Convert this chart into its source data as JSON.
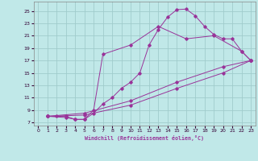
{
  "xlabel": "Windchill (Refroidissement éolien,°C)",
  "bg_color": "#c0e8e8",
  "grid_color": "#a0cccc",
  "line_color": "#993399",
  "xlim": [
    -0.5,
    23.5
  ],
  "ylim": [
    6.5,
    26.5
  ],
  "xticks": [
    0,
    1,
    2,
    3,
    4,
    5,
    6,
    7,
    8,
    9,
    10,
    11,
    12,
    13,
    14,
    15,
    16,
    17,
    18,
    19,
    20,
    21,
    22,
    23
  ],
  "yticks": [
    7,
    9,
    11,
    13,
    15,
    17,
    19,
    21,
    23,
    25
  ],
  "curves": [
    [
      [
        1,
        8
      ],
      [
        2,
        8
      ],
      [
        3,
        8
      ],
      [
        4,
        7.5
      ],
      [
        5,
        7.5
      ],
      [
        6,
        8.5
      ],
      [
        7,
        10
      ],
      [
        8,
        11
      ],
      [
        9,
        12.5
      ],
      [
        10,
        13.5
      ],
      [
        11,
        15
      ],
      [
        12,
        19.5
      ],
      [
        13,
        22
      ],
      [
        14,
        24
      ],
      [
        15,
        25.2
      ],
      [
        16,
        25.3
      ],
      [
        17,
        24.2
      ],
      [
        18,
        22.5
      ],
      [
        19,
        21.2
      ],
      [
        20,
        20.5
      ],
      [
        21,
        20.5
      ],
      [
        22,
        18.5
      ],
      [
        23,
        17
      ]
    ],
    [
      [
        1,
        8
      ],
      [
        3,
        7.8
      ],
      [
        4,
        7.5
      ],
      [
        5,
        7.5
      ],
      [
        6,
        9
      ],
      [
        7,
        18
      ],
      [
        10,
        19.5
      ],
      [
        13,
        22.5
      ],
      [
        16,
        20.5
      ],
      [
        19,
        21
      ],
      [
        22,
        18.5
      ],
      [
        23,
        17
      ]
    ],
    [
      [
        1,
        8
      ],
      [
        5,
        8.2
      ],
      [
        10,
        9.8
      ],
      [
        15,
        12.5
      ],
      [
        20,
        15
      ],
      [
        23,
        17
      ]
    ],
    [
      [
        1,
        8
      ],
      [
        5,
        8.5
      ],
      [
        10,
        10.5
      ],
      [
        15,
        13.5
      ],
      [
        20,
        16
      ],
      [
        23,
        17
      ]
    ]
  ]
}
